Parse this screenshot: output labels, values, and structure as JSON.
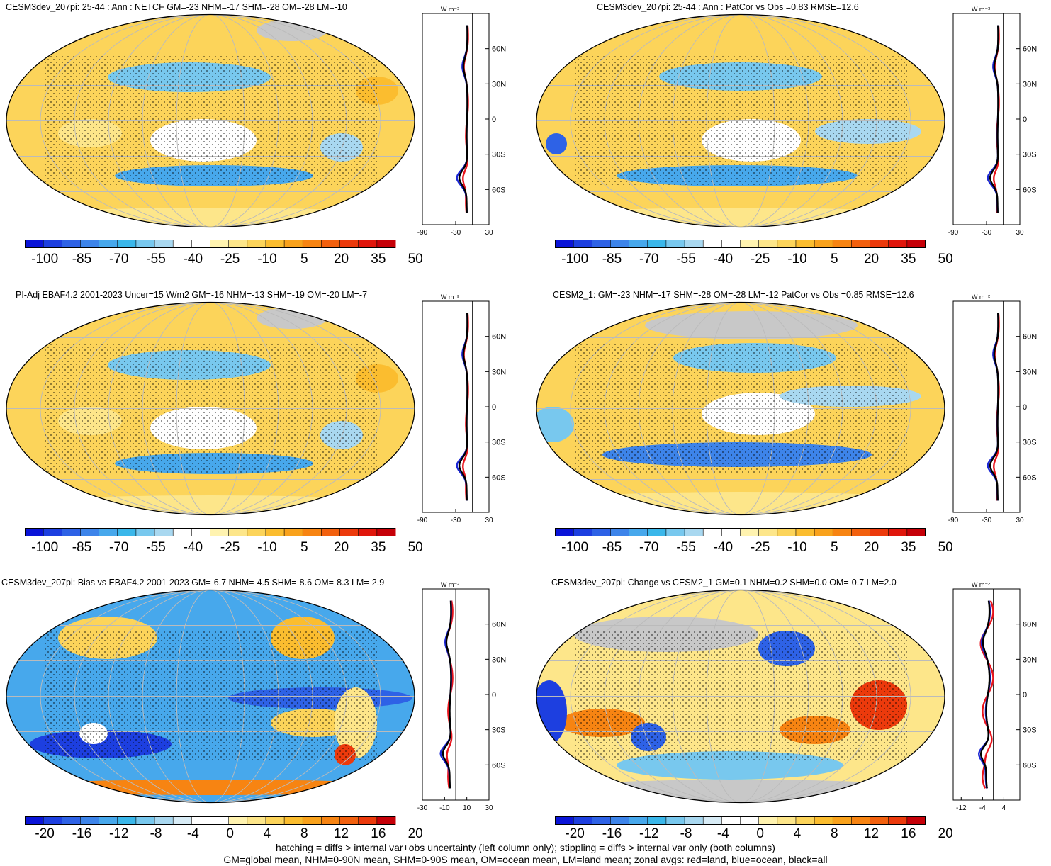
{
  "panels": [
    {
      "title": "CESM3dev_207pi: 25-44 : Ann : NETCF GM=-23 NHM=-17 SHM=-28 OM=-28 LM=-10",
      "colorbar_labels": [
        "-100",
        "-85",
        "-70",
        "-55",
        "-40",
        "-25",
        "-10",
        "5",
        "20",
        "35",
        "50"
      ],
      "palette": "absolute",
      "zonal": {
        "units": "W m-2",
        "x_ticks": [
          "-90",
          "-30",
          "30"
        ],
        "lat_ticks": [
          "60N",
          "30N",
          "0",
          "30S",
          "60S"
        ],
        "xlim": [
          -90,
          30
        ],
        "series_colors": {
          "land": "#e8141c",
          "ocean": "#1a25d4",
          "all": "#000000"
        }
      }
    },
    {
      "title": "CESM3dev_207pi: 25-44 : Ann : PatCor vs Obs =0.83 RMSE=12.6",
      "colorbar_labels": [
        "-100",
        "-85",
        "-70",
        "-55",
        "-40",
        "-25",
        "-10",
        "5",
        "20",
        "35",
        "50"
      ],
      "palette": "absolute",
      "zonal": {
        "units": "W m-2",
        "x_ticks": [
          "-90",
          "-30",
          "30"
        ],
        "lat_ticks": [
          "60N",
          "30N",
          "0",
          "30S",
          "60S"
        ],
        "xlim": [
          -90,
          30
        ],
        "series_colors": {
          "land": "#e8141c",
          "ocean": "#1a25d4",
          "all": "#000000"
        }
      }
    },
    {
      "title": "PI-Adj EBAF4.2 2001-2023 Uncer=15 W/m2 GM=-16 NHM=-13 SHM=-19 OM=-20 LM=-7",
      "colorbar_labels": [
        "-100",
        "-85",
        "-70",
        "-55",
        "-40",
        "-25",
        "-10",
        "5",
        "20",
        "35",
        "50"
      ],
      "palette": "absolute",
      "zonal": {
        "units": "W m-2",
        "x_ticks": [
          "-90",
          "-30",
          "30"
        ],
        "lat_ticks": [
          "60N",
          "30N",
          "0",
          "30S",
          "60S"
        ],
        "xlim": [
          -90,
          30
        ],
        "series_colors": {
          "land": "#e8141c",
          "ocean": "#1a25d4",
          "all": "#000000"
        }
      }
    },
    {
      "title": "CESM2_1: GM=-23 NHM=-17 SHM=-28 OM=-28 LM=-12 PatCor vs Obs =0.85 RMSE=12.6",
      "colorbar_labels": [
        "-100",
        "-85",
        "-70",
        "-55",
        "-40",
        "-25",
        "-10",
        "5",
        "20",
        "35",
        "50"
      ],
      "palette": "absolute",
      "zonal": {
        "units": "W m-2",
        "x_ticks": [
          "-90",
          "-30",
          "30"
        ],
        "lat_ticks": [
          "60N",
          "30N",
          "0",
          "30S",
          "60S"
        ],
        "xlim": [
          -90,
          30
        ],
        "series_colors": {
          "land": "#e8141c",
          "ocean": "#1a25d4",
          "all": "#000000"
        }
      }
    },
    {
      "title": "CESM3dev_207pi: Bias vs EBAF4.2 2001-2023 GM=-6.7 NHM=-4.5 SHM=-8.6 OM=-8.3 LM=-2.9",
      "colorbar_labels": [
        "-20",
        "-16",
        "-12",
        "-8",
        "-4",
        "0",
        "4",
        "8",
        "12",
        "16",
        "20"
      ],
      "palette": "diff",
      "zonal": {
        "units": "W m-2",
        "x_ticks": [
          "-30",
          "-10",
          "10",
          "30"
        ],
        "lat_ticks": [
          "60N",
          "30N",
          "0",
          "30S",
          "60S"
        ],
        "xlim": [
          -30,
          30
        ],
        "series_colors": {
          "land": "#e8141c",
          "ocean": "#1a25d4",
          "all": "#000000"
        }
      }
    },
    {
      "title": "CESM3dev_207pi: Change vs CESM2_1 GM=0.1 NHM=0.2 SHM=0.0 OM=-0.7 LM=2.0",
      "colorbar_labels": [
        "-20",
        "-16",
        "-12",
        "-8",
        "-4",
        "0",
        "4",
        "8",
        "12",
        "16",
        "20"
      ],
      "palette": "diff",
      "zonal": {
        "units": "W m-2",
        "x_ticks": [
          "-12",
          "-4",
          "4"
        ],
        "lat_ticks": [
          "60N",
          "30N",
          "0",
          "30S",
          "60S"
        ],
        "xlim": [
          -15,
          10
        ],
        "series_colors": {
          "land": "#e8141c",
          "ocean": "#1a25d4",
          "all": "#000000"
        }
      }
    }
  ],
  "colors": {
    "absolute": [
      "#0a14d8",
      "#1d3fe0",
      "#2e62e6",
      "#3d84ea",
      "#47a8ec",
      "#3ab7ea",
      "#78c8ee",
      "#a9d8f0",
      "#ffffff",
      "#ffffff",
      "#fff3b0",
      "#fde68a",
      "#fcd45a",
      "#fbbd2f",
      "#f9a21c",
      "#f78412",
      "#f2600e",
      "#ec3a0c",
      "#e0160c",
      "#c60008"
    ],
    "diff": [
      "#0a14d8",
      "#1d3fe0",
      "#2e62e6",
      "#3d84ea",
      "#47a8ec",
      "#3ab7ea",
      "#78c8ee",
      "#a9d8f0",
      "#d8ecf6",
      "#ffffff",
      "#ffffff",
      "#fff3b0",
      "#fde68a",
      "#fcd45a",
      "#fbbd2f",
      "#f9a21c",
      "#f78412",
      "#f2600e",
      "#ec3a0c",
      "#c60008"
    ],
    "land_mask": "#c8c8c8",
    "units_symbol": "W m⁻²"
  },
  "footer": {
    "line1": "hatching = diffs > internal var+obs uncertainty (left column only); stippling = diffs > internal var only (both columns)",
    "line2": "GM=global mean, NHM=0-90N mean, SHM=0-90S mean, OM=ocean mean, LM=land mean; zonal avgs: red=land, blue=ocean, black=all"
  }
}
